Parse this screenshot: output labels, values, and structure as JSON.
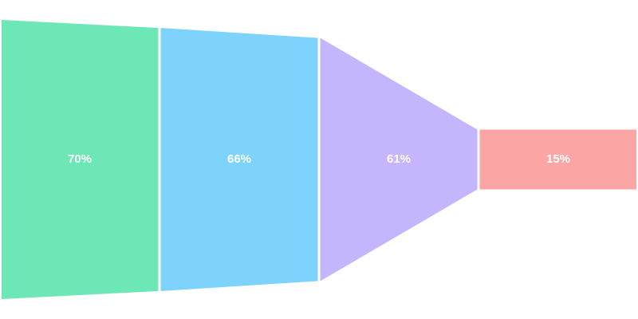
{
  "chart_data": {
    "type": "funnel",
    "values": [
      70,
      66,
      61,
      15
    ],
    "labels": [
      "70%",
      "66%",
      "61%",
      "15%"
    ],
    "colors": [
      "#6ee7b7",
      "#7dd3fc",
      "#c4b5fd",
      "#fca5a5"
    ],
    "max_value": 80
  }
}
